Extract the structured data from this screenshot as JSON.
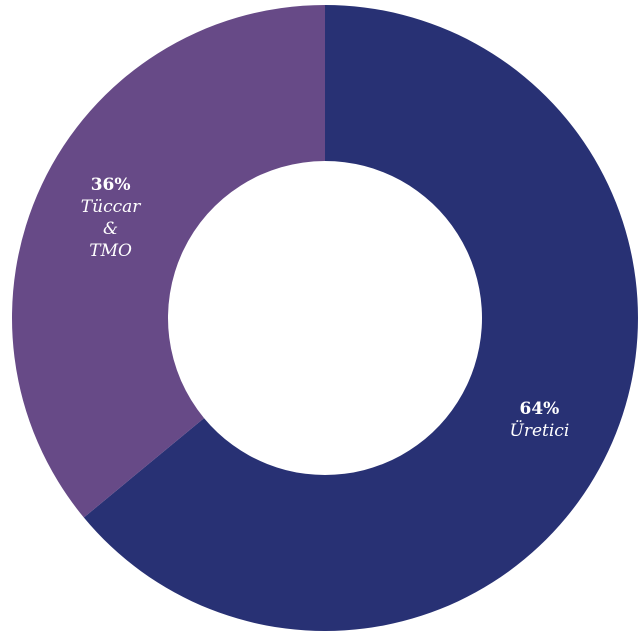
{
  "chart_data": {
    "type": "pie",
    "donut": true,
    "slices": [
      {
        "name": "Üretici",
        "value": 64,
        "percent_label": "64%",
        "label_lines": [
          "Üretici"
        ],
        "color": "#283174"
      },
      {
        "name": "Tüccar & TMO",
        "value": 36,
        "percent_label": "36%",
        "label_lines": [
          "Tüccar",
          "&",
          "TMO"
        ],
        "color": "#674A87"
      }
    ]
  }
}
